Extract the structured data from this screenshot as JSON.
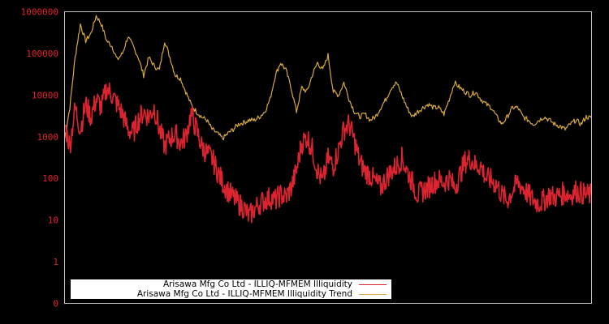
{
  "chart_data": {
    "type": "line",
    "title": "",
    "xlabel": "",
    "ylabel": "",
    "y_scale": "log",
    "y_tick_labels": [
      "0",
      "1",
      "10",
      "100",
      "1000",
      "10000",
      "100000",
      "1000000"
    ],
    "ylim": [
      0.1,
      1000000
    ],
    "grid": false,
    "legend_position": "lower-left",
    "series": [
      {
        "name": "Arisawa Mfg Co Ltd - ILLIQ-MFMEM Illiquidity",
        "color": "#dc2430",
        "x_frac": [
          0.0,
          0.01,
          0.02,
          0.03,
          0.04,
          0.05,
          0.06,
          0.07,
          0.08,
          0.09,
          0.1,
          0.11,
          0.12,
          0.13,
          0.14,
          0.15,
          0.16,
          0.17,
          0.18,
          0.19,
          0.2,
          0.21,
          0.22,
          0.23,
          0.24,
          0.25,
          0.26,
          0.27,
          0.28,
          0.29,
          0.3,
          0.31,
          0.32,
          0.33,
          0.34,
          0.35,
          0.36,
          0.37,
          0.38,
          0.39,
          0.4,
          0.41,
          0.42,
          0.43,
          0.44,
          0.45,
          0.46,
          0.47,
          0.48,
          0.49,
          0.5,
          0.51,
          0.52,
          0.53,
          0.54,
          0.55,
          0.56,
          0.57,
          0.58,
          0.59,
          0.6,
          0.61,
          0.62,
          0.63,
          0.64,
          0.65,
          0.66,
          0.67,
          0.68,
          0.69,
          0.7,
          0.71,
          0.72,
          0.73,
          0.74,
          0.75,
          0.76,
          0.77,
          0.78,
          0.79,
          0.8,
          0.81,
          0.82,
          0.83,
          0.84,
          0.85,
          0.86,
          0.87,
          0.88,
          0.89,
          0.9,
          0.91,
          0.92,
          0.93,
          0.94,
          0.95,
          0.96,
          0.97,
          0.98,
          0.99,
          1.0
        ],
        "values": [
          2000,
          600,
          5000,
          1500,
          6000,
          3000,
          8000,
          5000,
          15000,
          10000,
          6000,
          3500,
          1500,
          1200,
          2500,
          4000,
          3000,
          5000,
          1500,
          600,
          900,
          1200,
          700,
          1000,
          3500,
          1500,
          600,
          400,
          300,
          150,
          80,
          50,
          35,
          25,
          20,
          12,
          18,
          25,
          30,
          35,
          30,
          40,
          35,
          60,
          150,
          700,
          1000,
          500,
          150,
          80,
          300,
          200,
          500,
          1500,
          2000,
          800,
          250,
          150,
          120,
          80,
          60,
          100,
          150,
          200,
          300,
          150,
          80,
          40,
          50,
          60,
          80,
          90,
          80,
          100,
          60,
          120,
          250,
          300,
          200,
          200,
          100,
          90,
          70,
          40,
          30,
          50,
          80,
          60,
          40,
          30,
          25,
          30,
          40,
          35,
          40,
          45,
          40,
          50,
          45,
          40,
          40
        ]
      },
      {
        "name": "Arisawa Mfg Co Ltd - ILLIQ-MFMEM Illiquidity Trend",
        "color": "#d8a840",
        "x_frac": [
          0.0,
          0.01,
          0.02,
          0.03,
          0.04,
          0.05,
          0.06,
          0.07,
          0.08,
          0.09,
          0.1,
          0.11,
          0.12,
          0.13,
          0.14,
          0.15,
          0.16,
          0.17,
          0.18,
          0.19,
          0.2,
          0.21,
          0.22,
          0.23,
          0.24,
          0.25,
          0.26,
          0.27,
          0.28,
          0.29,
          0.3,
          0.31,
          0.32,
          0.33,
          0.34,
          0.35,
          0.36,
          0.37,
          0.38,
          0.39,
          0.4,
          0.41,
          0.42,
          0.43,
          0.44,
          0.45,
          0.46,
          0.47,
          0.48,
          0.49,
          0.5,
          0.51,
          0.52,
          0.53,
          0.54,
          0.55,
          0.56,
          0.57,
          0.58,
          0.59,
          0.6,
          0.61,
          0.62,
          0.63,
          0.64,
          0.65,
          0.66,
          0.67,
          0.68,
          0.69,
          0.7,
          0.71,
          0.72,
          0.73,
          0.74,
          0.75,
          0.76,
          0.77,
          0.78,
          0.79,
          0.8,
          0.81,
          0.82,
          0.83,
          0.84,
          0.85,
          0.86,
          0.87,
          0.88,
          0.89,
          0.9,
          0.91,
          0.92,
          0.93,
          0.94,
          0.95,
          0.96,
          0.97,
          0.98,
          0.99,
          1.0
        ],
        "values": [
          900,
          5000,
          80000,
          500000,
          200000,
          300000,
          800000,
          500000,
          200000,
          150000,
          70000,
          100000,
          250000,
          150000,
          80000,
          30000,
          80000,
          50000,
          40000,
          200000,
          80000,
          30000,
          25000,
          12000,
          6000,
          4000,
          3000,
          2500,
          1500,
          1200,
          900,
          1200,
          1500,
          2000,
          2200,
          2500,
          2500,
          3000,
          4000,
          8000,
          30000,
          60000,
          40000,
          15000,
          4000,
          15000,
          12000,
          30000,
          60000,
          40000,
          90000,
          12000,
          10000,
          20000,
          8000,
          4000,
          3000,
          3500,
          2500,
          3000,
          5000,
          8000,
          15000,
          20000,
          10000,
          5000,
          3000,
          4000,
          5000,
          6000,
          5000,
          5000,
          3500,
          8000,
          20000,
          15000,
          12000,
          10000,
          12000,
          8000,
          6000,
          5000,
          3000,
          2000,
          3000,
          5000,
          5000,
          3000,
          2500,
          2000,
          2500,
          3000,
          2500,
          2000,
          1800,
          1500,
          2000,
          2500,
          2000,
          3000,
          2800
        ]
      }
    ]
  },
  "legend": {
    "items": [
      {
        "label": "Arisawa Mfg Co Ltd - ILLIQ-MFMEM Illiquidity",
        "color": "#dc2430"
      },
      {
        "label": "Arisawa Mfg Co Ltd - ILLIQ-MFMEM Illiquidity Trend",
        "color": "#d8a840"
      }
    ]
  },
  "axis": {
    "tick_color": "#e0202c",
    "frame_color": "#c8c8c8"
  }
}
